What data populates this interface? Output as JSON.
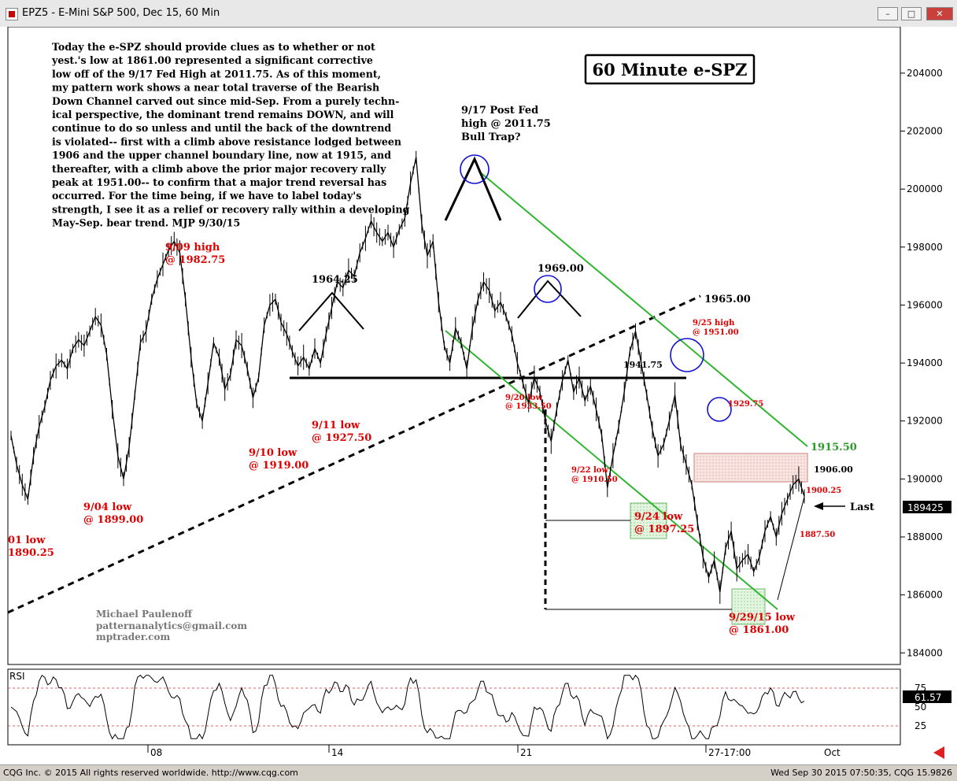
{
  "window": {
    "title": "EPZ5 - E-Mini S&P 500, Dec 15, 60 Min",
    "minimize": "–",
    "maximize": "□",
    "close": "✕"
  },
  "status": {
    "left": "CQG Inc. © 2015 All rights reserved worldwide.  http://www.cqg.com",
    "right": "Wed Sep 30 2015 07:50:35, CQG 15.9826"
  },
  "chart_data": {
    "type": "line",
    "title": "60 Minute e-SPZ",
    "y_axis": {
      "ticks": [
        "204000",
        "202000",
        "200000",
        "198000",
        "196000",
        "194000",
        "192000",
        "190000",
        "188000",
        "186000",
        "184000"
      ],
      "last_label": "189425",
      "ylim": [
        183600,
        205600
      ]
    },
    "x_axis": {
      "ticks": [
        "08",
        "14",
        "21",
        "27-17:00",
        "Oct"
      ]
    },
    "commentary": [
      "Today the e-SPZ should provide clues as to whether or not",
      "yest.'s low at 1861.00 represented a significant corrective",
      "low off of the 9/17 Fed High at 2011.75. As of this moment,",
      "my pattern work shows a near total traverse of the Bearish",
      "Down Channel carved out since mid-Sep. From a purely techn-",
      "ical perspective, the dominant trend remains DOWN, and will",
      "continue to do so unless and until the back of the downtrend",
      "is violated-- first with a climb above resistance lodged between",
      "1906 and the upper channel boundary line, now at 1915, and",
      "thereafter, with a climb above the prior major recovery rally",
      "peak at 1951.00-- to confirm that a major trend reversal has",
      "occurred. For the time being, if we have to label today's",
      "strength, I see it as a relief or recovery rally within a developing",
      "May-Sep. bear trend. MJP 9/30/15"
    ],
    "author": [
      "Michael Paulenoff",
      "patternanalytics@gmail.com",
      "mptrader.com"
    ],
    "annotations": {
      "fed_high": [
        "9/17 Post Fed",
        "high @ 2011.75",
        "Bull Trap?"
      ],
      "h1964": "1964.25",
      "h1969": "1969.00",
      "l1965": "1965.00",
      "l1941": "1941.75",
      "l1915": "1915.50",
      "l1906": "1906.00",
      "l1900": "1900.25",
      "l1887": "1887.50",
      "l1929": "1929.75",
      "last": "Last",
      "h0909": [
        "9/09 high",
        "@ 1982.75"
      ],
      "l0904": [
        "9/04 low",
        "@ 1899.00"
      ],
      "l0901": [
        "01 low",
        "1890.25"
      ],
      "l0910": [
        "9/10 low",
        "@ 1919.00"
      ],
      "l0911": [
        "9/11 low",
        "@ 1927.50"
      ],
      "l0920": [
        "9/20 low",
        "@ 1933.50"
      ],
      "l0922": [
        "9/22 low",
        "@ 1910.50"
      ],
      "l0924": [
        "9/24 low",
        "@ 1897.25"
      ],
      "h0925": [
        "9/25 high",
        "@ 1951.00"
      ],
      "l0929": [
        "9/29/15 low",
        "@ 1861.00"
      ]
    },
    "rsi": {
      "label": "RSI",
      "ticks": [
        "75",
        "50",
        "25"
      ],
      "last": "61.57",
      "overbought": 75,
      "oversold": 25
    },
    "series": [
      {
        "values": [
          1915,
          1905,
          1898,
          1893,
          1908,
          1918,
          1925,
          1934,
          1939,
          1941,
          1938,
          1945,
          1948,
          1946,
          1951,
          1956,
          1953,
          1943,
          1924,
          1908,
          1900,
          1911,
          1929,
          1947,
          1951,
          1962,
          1969,
          1974,
          1979,
          1982,
          1978,
          1962,
          1942,
          1926,
          1920,
          1933,
          1947,
          1942,
          1931,
          1936,
          1948,
          1946,
          1938,
          1928,
          1935,
          1953,
          1960,
          1962,
          1954,
          1950,
          1944,
          1939,
          1942,
          1938,
          1945,
          1940,
          1950,
          1959,
          1968,
          1966,
          1972,
          1970,
          1978,
          1983,
          1989,
          1985,
          1982,
          1985,
          1980,
          1986,
          1990,
          2002,
          2011,
          1988,
          1977,
          1982,
          1961,
          1946,
          1940,
          1952,
          1947,
          1938,
          1952,
          1962,
          1968,
          1965,
          1958,
          1961,
          1956,
          1950,
          1940,
          1933,
          1926,
          1935,
          1930,
          1920,
          1913,
          1924,
          1934,
          1941,
          1930,
          1935,
          1927,
          1932,
          1924,
          1915,
          1897,
          1908,
          1918,
          1930,
          1944,
          1951,
          1940,
          1929,
          1917,
          1908,
          1912,
          1920,
          1929,
          1912,
          1905,
          1898,
          1885,
          1873,
          1866,
          1872,
          1861,
          1876,
          1882,
          1869,
          1872,
          1874,
          1868,
          1873,
          1882,
          1887,
          1880,
          1888,
          1893,
          1898,
          1900,
          1894
        ]
      }
    ]
  }
}
